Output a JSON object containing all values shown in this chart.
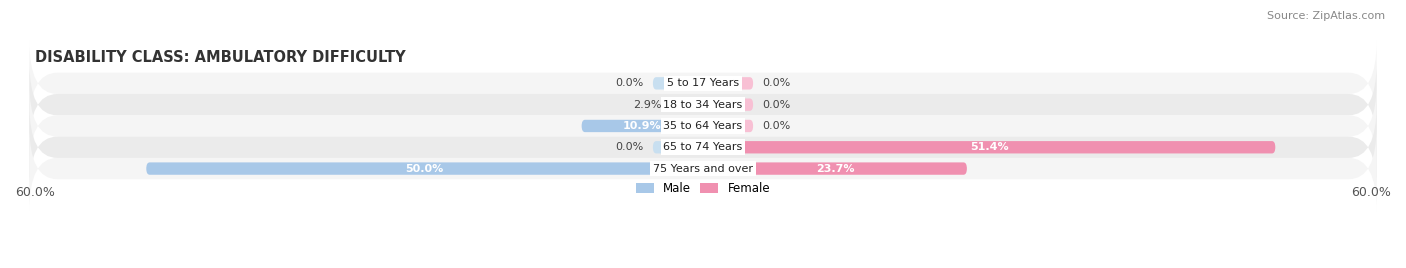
{
  "title": "DISABILITY CLASS: AMBULATORY DIFFICULTY",
  "source": "Source: ZipAtlas.com",
  "categories": [
    "5 to 17 Years",
    "18 to 34 Years",
    "35 to 64 Years",
    "65 to 74 Years",
    "75 Years and over"
  ],
  "male_values": [
    0.0,
    2.9,
    10.9,
    0.0,
    50.0
  ],
  "female_values": [
    0.0,
    0.0,
    0.0,
    51.4,
    23.7
  ],
  "male_color": "#a8c8e8",
  "female_color": "#f090b0",
  "male_stub_color": "#c8dff0",
  "female_stub_color": "#f8c0d4",
  "xlim": 60.0,
  "bar_height": 0.58,
  "stub_size": 4.5,
  "title_fontsize": 10.5,
  "label_fontsize": 8.0,
  "value_fontsize": 8.0,
  "tick_fontsize": 9,
  "source_fontsize": 8,
  "background_color": "#ffffff",
  "row_color_even": "#f5f5f5",
  "row_color_odd": "#ebebeb"
}
